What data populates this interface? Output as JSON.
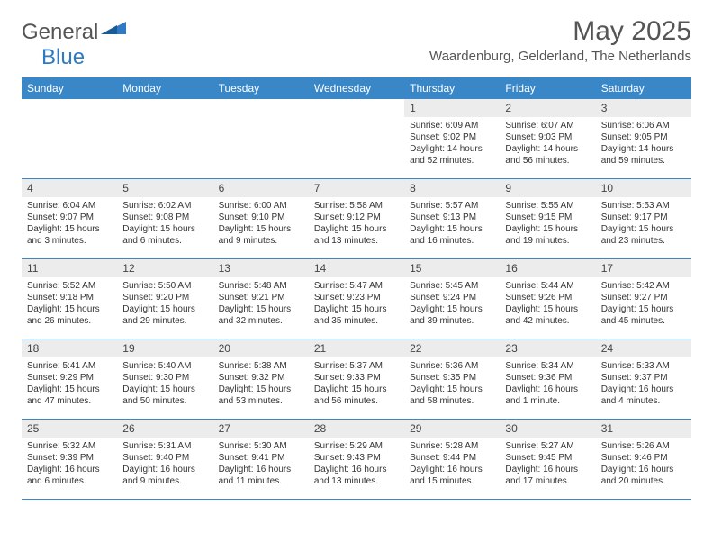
{
  "logo": {
    "text1": "General",
    "text2": "Blue"
  },
  "title": "May 2025",
  "location": "Waardenburg, Gelderland, The Netherlands",
  "colors": {
    "header_bg": "#3a87c8",
    "header_text": "#ffffff",
    "daynum_bg": "#ececec",
    "border": "#3a87c8",
    "logo_blue": "#2f7ac0",
    "text": "#333333"
  },
  "fonts": {
    "title_size": 30,
    "location_size": 15,
    "weekday_size": 12,
    "daynum_size": 12,
    "info_size": 10
  },
  "weekdays": [
    "Sunday",
    "Monday",
    "Tuesday",
    "Wednesday",
    "Thursday",
    "Friday",
    "Saturday"
  ],
  "weeks": [
    [
      {
        "n": "",
        "sr": "",
        "ss": "",
        "dl": ""
      },
      {
        "n": "",
        "sr": "",
        "ss": "",
        "dl": ""
      },
      {
        "n": "",
        "sr": "",
        "ss": "",
        "dl": ""
      },
      {
        "n": "",
        "sr": "",
        "ss": "",
        "dl": ""
      },
      {
        "n": "1",
        "sr": "Sunrise: 6:09 AM",
        "ss": "Sunset: 9:02 PM",
        "dl": "Daylight: 14 hours and 52 minutes."
      },
      {
        "n": "2",
        "sr": "Sunrise: 6:07 AM",
        "ss": "Sunset: 9:03 PM",
        "dl": "Daylight: 14 hours and 56 minutes."
      },
      {
        "n": "3",
        "sr": "Sunrise: 6:06 AM",
        "ss": "Sunset: 9:05 PM",
        "dl": "Daylight: 14 hours and 59 minutes."
      }
    ],
    [
      {
        "n": "4",
        "sr": "Sunrise: 6:04 AM",
        "ss": "Sunset: 9:07 PM",
        "dl": "Daylight: 15 hours and 3 minutes."
      },
      {
        "n": "5",
        "sr": "Sunrise: 6:02 AM",
        "ss": "Sunset: 9:08 PM",
        "dl": "Daylight: 15 hours and 6 minutes."
      },
      {
        "n": "6",
        "sr": "Sunrise: 6:00 AM",
        "ss": "Sunset: 9:10 PM",
        "dl": "Daylight: 15 hours and 9 minutes."
      },
      {
        "n": "7",
        "sr": "Sunrise: 5:58 AM",
        "ss": "Sunset: 9:12 PM",
        "dl": "Daylight: 15 hours and 13 minutes."
      },
      {
        "n": "8",
        "sr": "Sunrise: 5:57 AM",
        "ss": "Sunset: 9:13 PM",
        "dl": "Daylight: 15 hours and 16 minutes."
      },
      {
        "n": "9",
        "sr": "Sunrise: 5:55 AM",
        "ss": "Sunset: 9:15 PM",
        "dl": "Daylight: 15 hours and 19 minutes."
      },
      {
        "n": "10",
        "sr": "Sunrise: 5:53 AM",
        "ss": "Sunset: 9:17 PM",
        "dl": "Daylight: 15 hours and 23 minutes."
      }
    ],
    [
      {
        "n": "11",
        "sr": "Sunrise: 5:52 AM",
        "ss": "Sunset: 9:18 PM",
        "dl": "Daylight: 15 hours and 26 minutes."
      },
      {
        "n": "12",
        "sr": "Sunrise: 5:50 AM",
        "ss": "Sunset: 9:20 PM",
        "dl": "Daylight: 15 hours and 29 minutes."
      },
      {
        "n": "13",
        "sr": "Sunrise: 5:48 AM",
        "ss": "Sunset: 9:21 PM",
        "dl": "Daylight: 15 hours and 32 minutes."
      },
      {
        "n": "14",
        "sr": "Sunrise: 5:47 AM",
        "ss": "Sunset: 9:23 PM",
        "dl": "Daylight: 15 hours and 35 minutes."
      },
      {
        "n": "15",
        "sr": "Sunrise: 5:45 AM",
        "ss": "Sunset: 9:24 PM",
        "dl": "Daylight: 15 hours and 39 minutes."
      },
      {
        "n": "16",
        "sr": "Sunrise: 5:44 AM",
        "ss": "Sunset: 9:26 PM",
        "dl": "Daylight: 15 hours and 42 minutes."
      },
      {
        "n": "17",
        "sr": "Sunrise: 5:42 AM",
        "ss": "Sunset: 9:27 PM",
        "dl": "Daylight: 15 hours and 45 minutes."
      }
    ],
    [
      {
        "n": "18",
        "sr": "Sunrise: 5:41 AM",
        "ss": "Sunset: 9:29 PM",
        "dl": "Daylight: 15 hours and 47 minutes."
      },
      {
        "n": "19",
        "sr": "Sunrise: 5:40 AM",
        "ss": "Sunset: 9:30 PM",
        "dl": "Daylight: 15 hours and 50 minutes."
      },
      {
        "n": "20",
        "sr": "Sunrise: 5:38 AM",
        "ss": "Sunset: 9:32 PM",
        "dl": "Daylight: 15 hours and 53 minutes."
      },
      {
        "n": "21",
        "sr": "Sunrise: 5:37 AM",
        "ss": "Sunset: 9:33 PM",
        "dl": "Daylight: 15 hours and 56 minutes."
      },
      {
        "n": "22",
        "sr": "Sunrise: 5:36 AM",
        "ss": "Sunset: 9:35 PM",
        "dl": "Daylight: 15 hours and 58 minutes."
      },
      {
        "n": "23",
        "sr": "Sunrise: 5:34 AM",
        "ss": "Sunset: 9:36 PM",
        "dl": "Daylight: 16 hours and 1 minute."
      },
      {
        "n": "24",
        "sr": "Sunrise: 5:33 AM",
        "ss": "Sunset: 9:37 PM",
        "dl": "Daylight: 16 hours and 4 minutes."
      }
    ],
    [
      {
        "n": "25",
        "sr": "Sunrise: 5:32 AM",
        "ss": "Sunset: 9:39 PM",
        "dl": "Daylight: 16 hours and 6 minutes."
      },
      {
        "n": "26",
        "sr": "Sunrise: 5:31 AM",
        "ss": "Sunset: 9:40 PM",
        "dl": "Daylight: 16 hours and 9 minutes."
      },
      {
        "n": "27",
        "sr": "Sunrise: 5:30 AM",
        "ss": "Sunset: 9:41 PM",
        "dl": "Daylight: 16 hours and 11 minutes."
      },
      {
        "n": "28",
        "sr": "Sunrise: 5:29 AM",
        "ss": "Sunset: 9:43 PM",
        "dl": "Daylight: 16 hours and 13 minutes."
      },
      {
        "n": "29",
        "sr": "Sunrise: 5:28 AM",
        "ss": "Sunset: 9:44 PM",
        "dl": "Daylight: 16 hours and 15 minutes."
      },
      {
        "n": "30",
        "sr": "Sunrise: 5:27 AM",
        "ss": "Sunset: 9:45 PM",
        "dl": "Daylight: 16 hours and 17 minutes."
      },
      {
        "n": "31",
        "sr": "Sunrise: 5:26 AM",
        "ss": "Sunset: 9:46 PM",
        "dl": "Daylight: 16 hours and 20 minutes."
      }
    ]
  ]
}
